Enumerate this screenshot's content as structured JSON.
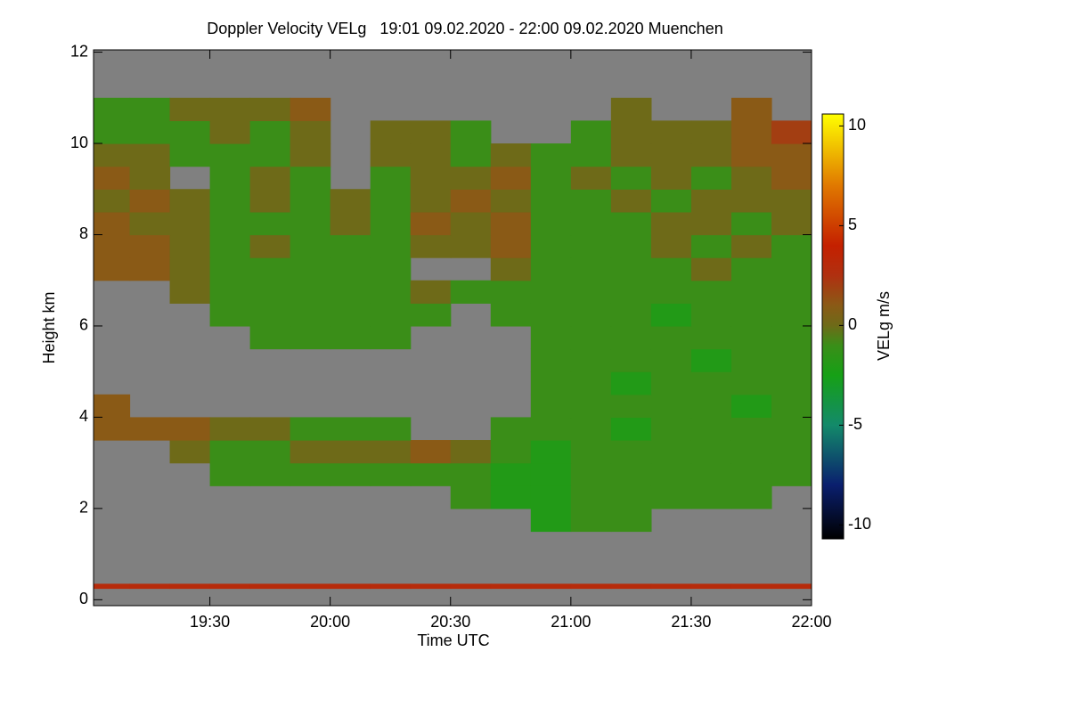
{
  "chart_data": {
    "type": "heatmap",
    "title": "Doppler Velocity VELg   19:01 09.02.2020 - 22:00 09.02.2020 Muenchen",
    "xlabel": "Time UTC",
    "ylabel": "Height km",
    "colorbar_label": "VELg m/s",
    "xlim": [
      19.0167,
      22.0
    ],
    "ylim": [
      -0.13,
      12.05
    ],
    "clim": [
      -10.7,
      10.6
    ],
    "xticks": [
      {
        "value": 19.5,
        "label": "19:30"
      },
      {
        "value": 20,
        "label": "20:00"
      },
      {
        "value": 20.5,
        "label": "20:30"
      },
      {
        "value": 21,
        "label": "21:00"
      },
      {
        "value": 21.5,
        "label": "21:30"
      },
      {
        "value": 22,
        "label": "22:00"
      }
    ],
    "yticks": [
      0,
      2,
      4,
      6,
      8,
      10,
      12
    ],
    "cticks": [
      -10,
      -5,
      0,
      5,
      10
    ],
    "background_color": "#808080",
    "colormap": [
      [
        -10.7,
        "#000000"
      ],
      [
        -8,
        "#0a1f6e"
      ],
      [
        -5,
        "#138a6a"
      ],
      [
        -2.5,
        "#16a016"
      ],
      [
        -1,
        "#3a8e18"
      ],
      [
        0,
        "#6e6a18"
      ],
      [
        1,
        "#8a5a16"
      ],
      [
        2.5,
        "#b03010"
      ],
      [
        4,
        "#c42000"
      ],
      [
        7,
        "#e07800"
      ],
      [
        10.6,
        "#ffff00"
      ]
    ],
    "xbins": [
      19.0167,
      19.1667,
      19.3333,
      19.5,
      19.6667,
      19.8333,
      20.0,
      20.1667,
      20.3333,
      20.5,
      20.6667,
      20.8333,
      21.0,
      21.1667,
      21.3333,
      21.5,
      21.6667,
      21.8333,
      22.0
    ],
    "ybins": [
      0.25,
      0.35,
      0.5,
      1.0,
      1.5,
      2.0,
      2.5,
      3.0,
      3.5,
      4.0,
      4.5,
      5.0,
      5.5,
      6.0,
      6.5,
      7.0,
      7.5,
      8.0,
      8.5,
      9.0,
      9.5,
      10.0,
      10.5,
      11.0,
      11.5,
      12.0
    ],
    "values": [
      [
        3,
        3,
        3,
        3,
        3,
        3,
        3,
        3,
        3,
        3,
        3,
        3,
        3,
        3,
        3,
        3,
        3,
        3
      ],
      [
        null,
        null,
        null,
        null,
        null,
        null,
        null,
        null,
        null,
        null,
        null,
        null,
        null,
        null,
        null,
        null,
        null,
        null
      ],
      [
        null,
        null,
        null,
        null,
        null,
        null,
        null,
        null,
        null,
        null,
        null,
        null,
        null,
        null,
        null,
        null,
        null,
        null
      ],
      [
        null,
        null,
        null,
        null,
        null,
        null,
        null,
        null,
        null,
        null,
        null,
        null,
        null,
        null,
        null,
        null,
        null,
        null
      ],
      [
        null,
        null,
        null,
        null,
        null,
        null,
        null,
        null,
        null,
        null,
        null,
        -2,
        -1,
        -1,
        null,
        null,
        null,
        null
      ],
      [
        null,
        null,
        null,
        null,
        null,
        null,
        null,
        null,
        null,
        -1,
        -2,
        -2,
        -1,
        -1,
        -1,
        -1,
        -1,
        null
      ],
      [
        null,
        null,
        null,
        -1,
        -1,
        -1,
        -1,
        -1,
        -1,
        -1,
        -2,
        -2,
        -1,
        -1,
        -1,
        -1,
        -1,
        -1
      ],
      [
        null,
        null,
        0,
        -1,
        -1,
        0,
        0,
        0,
        1,
        0,
        -1,
        -2,
        -1,
        -1,
        -1,
        -1,
        -1,
        -1
      ],
      [
        1,
        1,
        1,
        0,
        0,
        -1,
        -1,
        -1,
        null,
        null,
        -1,
        -1,
        -1,
        -2,
        -1,
        -1,
        -1,
        -1
      ],
      [
        1,
        null,
        null,
        null,
        null,
        null,
        null,
        null,
        null,
        null,
        null,
        -1,
        -1,
        -1,
        -1,
        -1,
        -2,
        -1
      ],
      [
        null,
        null,
        null,
        null,
        null,
        null,
        null,
        null,
        null,
        null,
        null,
        -1,
        -1,
        -2,
        -1,
        -1,
        -1,
        -1
      ],
      [
        null,
        null,
        null,
        null,
        null,
        null,
        null,
        null,
        null,
        null,
        null,
        -1,
        -1,
        -1,
        -1,
        -2,
        -1,
        -1
      ],
      [
        null,
        null,
        null,
        null,
        -1,
        -1,
        -1,
        -1,
        null,
        null,
        null,
        -1,
        -1,
        -1,
        -1,
        -1,
        -1,
        -1
      ],
      [
        null,
        null,
        null,
        -1,
        -1,
        -1,
        -1,
        -1,
        -1,
        null,
        -1,
        -1,
        -1,
        -1,
        -2,
        -1,
        -1,
        -1
      ],
      [
        null,
        null,
        0,
        -1,
        -1,
        -1,
        -1,
        -1,
        0,
        -1,
        -1,
        -1,
        -1,
        -1,
        -1,
        -1,
        -1,
        -1
      ],
      [
        1,
        1,
        0,
        -1,
        -1,
        -1,
        -1,
        -1,
        null,
        null,
        0,
        -1,
        -1,
        -1,
        -1,
        0,
        -1,
        -1
      ],
      [
        1,
        1,
        0,
        -1,
        0,
        -1,
        -1,
        -1,
        0,
        0,
        1,
        -1,
        -1,
        -1,
        0,
        -1,
        0,
        -1
      ],
      [
        1,
        0,
        0,
        -1,
        -1,
        -1,
        0,
        -1,
        1,
        0,
        1,
        -1,
        -1,
        -1,
        0,
        0,
        -1,
        0
      ],
      [
        0,
        1,
        0,
        -1,
        0,
        -1,
        0,
        -1,
        0,
        1,
        0,
        -1,
        -1,
        0,
        -1,
        0,
        0,
        0
      ],
      [
        1,
        0,
        null,
        -1,
        0,
        -1,
        null,
        -1,
        0,
        0,
        1,
        -1,
        0,
        -1,
        0,
        -1,
        0,
        1
      ],
      [
        0,
        0,
        -1,
        -1,
        -1,
        0,
        null,
        0,
        0,
        -1,
        0,
        -1,
        -1,
        0,
        0,
        0,
        1,
        1
      ],
      [
        -1,
        -1,
        -1,
        0,
        -1,
        0,
        null,
        0,
        0,
        -1,
        null,
        null,
        -1,
        0,
        0,
        0,
        1,
        2
      ],
      [
        -1,
        -1,
        0,
        0,
        0,
        1,
        null,
        null,
        null,
        null,
        null,
        null,
        null,
        0,
        null,
        null,
        1,
        null
      ],
      [
        null,
        null,
        null,
        null,
        null,
        null,
        null,
        null,
        null,
        null,
        null,
        null,
        null,
        null,
        null,
        null,
        null,
        null
      ],
      [
        null,
        null,
        null,
        null,
        null,
        null,
        null,
        null,
        null,
        null,
        null,
        null,
        null,
        null,
        null,
        null,
        null,
        null
      ]
    ]
  }
}
